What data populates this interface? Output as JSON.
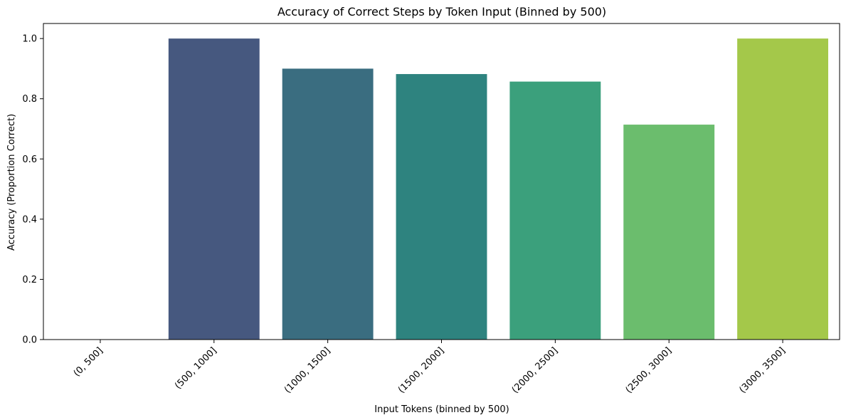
{
  "chart_data": {
    "type": "bar",
    "title": "Accuracy of Correct Steps by Token Input (Binned by 500)",
    "xlabel": "Input Tokens (binned by 500)",
    "ylabel": "Accuracy (Proportion Correct)",
    "categories": [
      "(0, 500]",
      "(500, 1000]",
      "(1000, 1500]",
      "(1500, 2000]",
      "(2000, 2500]",
      "(2500, 3000]",
      "(3000, 3500]"
    ],
    "values": [
      0.0,
      1.0,
      0.9,
      0.882,
      0.857,
      0.714,
      1.0
    ],
    "colors": [
      "#472d7b",
      "#46587f",
      "#3a6d80",
      "#2e837f",
      "#3ba07c",
      "#6bbd6d",
      "#a4c84a"
    ],
    "ylim": [
      0,
      1.05
    ],
    "yticks": [
      0.0,
      0.2,
      0.4,
      0.6,
      0.8,
      1.0
    ],
    "ytick_labels": [
      "0.0",
      "0.2",
      "0.4",
      "0.6",
      "0.8",
      "1.0"
    ],
    "grid": false,
    "legend": "none"
  }
}
